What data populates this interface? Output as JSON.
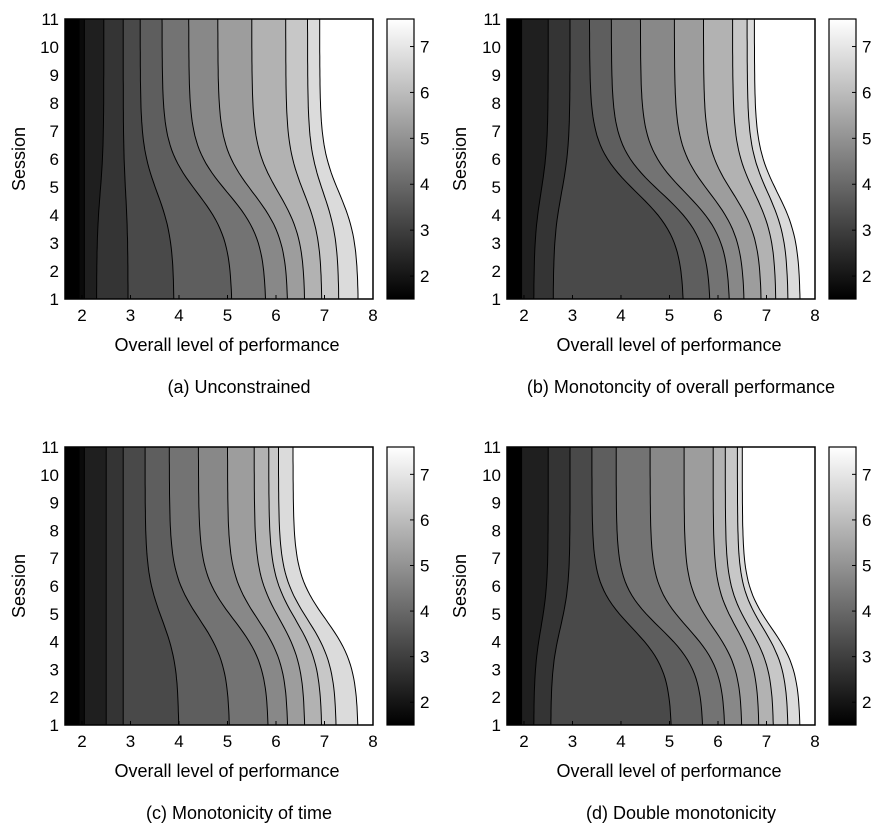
{
  "chart_data": [
    {
      "type": "heatmap",
      "subtype": "filled-contour",
      "caption": "(a) Unconstrained",
      "xlabel": "Overall level of performance",
      "ylabel": "Session",
      "xlim": [
        1.65,
        8
      ],
      "ylim": [
        1,
        11
      ],
      "xticks": [
        "2",
        "3",
        "4",
        "5",
        "6",
        "7",
        "8"
      ],
      "yticks": [
        "1",
        "2",
        "3",
        "4",
        "5",
        "6",
        "7",
        "8",
        "9",
        "10",
        "11"
      ],
      "colorbar": {
        "range": [
          1.5,
          7.6
        ],
        "ticks": [
          "2",
          "3",
          "4",
          "5",
          "6",
          "7"
        ],
        "colormap": "gray"
      },
      "profile": {
        "x_top": [
          2.05,
          2.45,
          2.85,
          3.2,
          3.65,
          4.2,
          4.8,
          5.5,
          6.2,
          6.65,
          6.9
        ],
        "x_bottom": [
          2.05,
          2.3,
          2.95,
          3.9,
          5.1,
          5.8,
          6.25,
          6.6,
          6.95,
          7.3,
          7.7
        ],
        "bend_y": 4.8,
        "sharpness": 1.2
      }
    },
    {
      "type": "heatmap",
      "subtype": "filled-contour",
      "caption": "(b) Monotoncity of overall performance",
      "xlabel": "Overall level of performance",
      "ylabel": "Session",
      "xlim": [
        1.65,
        8
      ],
      "ylim": [
        1,
        11
      ],
      "xticks": [
        "2",
        "3",
        "4",
        "5",
        "6",
        "7",
        "8"
      ],
      "yticks": [
        "1",
        "2",
        "3",
        "4",
        "5",
        "6",
        "7",
        "8",
        "9",
        "10",
        "11"
      ],
      "colorbar": {
        "range": [
          1.5,
          7.6
        ],
        "ticks": [
          "2",
          "3",
          "4",
          "5",
          "6",
          "7"
        ],
        "colormap": "gray"
      },
      "profile": {
        "x_top": [
          1.95,
          2.5,
          2.95,
          3.35,
          3.8,
          4.4,
          5.1,
          5.7,
          6.3,
          6.6,
          6.75
        ],
        "x_bottom": [
          1.95,
          2.2,
          2.6,
          5.3,
          5.85,
          6.25,
          6.55,
          6.9,
          7.2,
          7.45,
          7.7
        ],
        "bend_y": 4.8,
        "sharpness": 1.2
      }
    },
    {
      "type": "heatmap",
      "subtype": "filled-contour",
      "caption": "(c) Monotonicity of time",
      "xlabel": "Overall level of performance",
      "ylabel": "Session",
      "xlim": [
        1.65,
        8
      ],
      "ylim": [
        1,
        11
      ],
      "xticks": [
        "2",
        "3",
        "4",
        "5",
        "6",
        "7",
        "8"
      ],
      "yticks": [
        "1",
        "2",
        "3",
        "4",
        "5",
        "6",
        "7",
        "8",
        "9",
        "10",
        "11"
      ],
      "colorbar": {
        "range": [
          1.5,
          7.6
        ],
        "ticks": [
          "2",
          "3",
          "4",
          "5",
          "6",
          "7"
        ],
        "colormap": "gray"
      },
      "profile": {
        "x_top": [
          2.05,
          2.5,
          2.85,
          3.3,
          3.8,
          4.4,
          5.0,
          5.55,
          5.85,
          6.05,
          6.35
        ],
        "x_bottom": [
          2.05,
          2.5,
          2.85,
          4.0,
          5.05,
          5.85,
          6.25,
          6.6,
          6.95,
          7.25,
          7.7
        ],
        "bend_y": 4.8,
        "sharpness": 1.2
      }
    },
    {
      "type": "heatmap",
      "subtype": "filled-contour",
      "caption": "(d) Double monotonicity",
      "xlabel": "Overall level of performance",
      "ylabel": "Session",
      "xlim": [
        1.65,
        8
      ],
      "ylim": [
        1,
        11
      ],
      "xticks": [
        "2",
        "3",
        "4",
        "5",
        "6",
        "7",
        "8"
      ],
      "yticks": [
        "1",
        "2",
        "3",
        "4",
        "5",
        "6",
        "7",
        "8",
        "9",
        "10",
        "11"
      ],
      "colorbar": {
        "range": [
          1.5,
          7.6
        ],
        "ticks": [
          "2",
          "3",
          "4",
          "5",
          "6",
          "7"
        ],
        "colormap": "gray"
      },
      "profile": {
        "x_top": [
          1.95,
          2.5,
          2.95,
          3.4,
          3.9,
          4.6,
          5.3,
          5.9,
          6.15,
          6.4,
          6.5
        ],
        "x_bottom": [
          1.95,
          2.2,
          2.55,
          5.05,
          5.7,
          6.15,
          6.5,
          6.85,
          7.15,
          7.45,
          7.7
        ],
        "bend_y": 4.5,
        "sharpness": 1.3
      }
    }
  ]
}
